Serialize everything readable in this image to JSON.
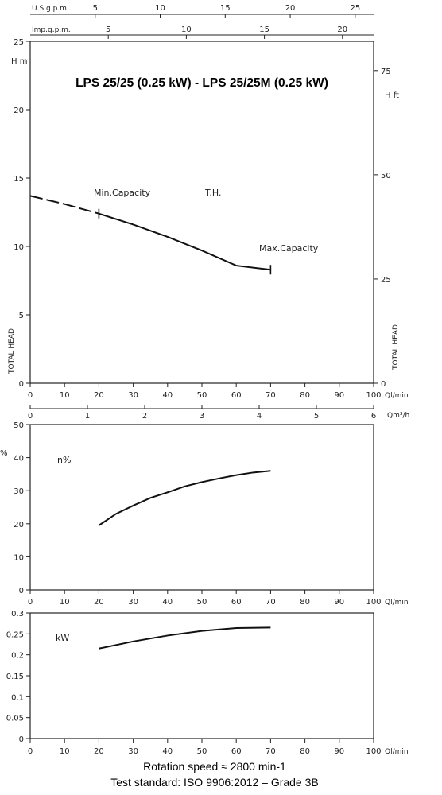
{
  "chart_data": [
    {
      "type": "line",
      "title": "LPS 25/25 (0.25 kW) - LPS 25/25M (0.25 kW)",
      "xlabel": "Ql/min",
      "ylabel": "TOTAL HEAD",
      "y_unit_left": "H m",
      "y_unit_right": "H ft",
      "xlim": [
        0,
        100
      ],
      "ylim": [
        0,
        25
      ],
      "x_ticks": [
        0,
        10,
        20,
        30,
        40,
        50,
        60,
        70,
        80,
        90,
        100
      ],
      "y_ticks": [
        0,
        5,
        10,
        15,
        20,
        25
      ],
      "y2_ticks": [
        0,
        25,
        50,
        75
      ],
      "secondary_x_axes": [
        {
          "label": "U.S.g.p.m.",
          "ticks": [
            5,
            10,
            15,
            20,
            25
          ]
        },
        {
          "label": "Imp.g.p.m.",
          "ticks": [
            5,
            10,
            15,
            20
          ]
        },
        {
          "label": "Qm³/h",
          "ticks": [
            0,
            1,
            2,
            3,
            4,
            5,
            6
          ]
        }
      ],
      "series": [
        {
          "name": "T.H.",
          "x": [
            0,
            10,
            20,
            30,
            40,
            50,
            60,
            70
          ],
          "y": [
            13.7,
            13.1,
            12.4,
            11.6,
            10.7,
            9.7,
            8.6,
            8.3
          ],
          "dashed_until_x": 20
        }
      ],
      "annotations": [
        {
          "text": "Min.Capacity",
          "x": 20,
          "y": 12.4
        },
        {
          "text": "Max.Capacity",
          "x": 70,
          "y": 8.3
        }
      ],
      "grid": false
    },
    {
      "type": "line",
      "title": "",
      "xlabel": "Ql/min",
      "ylabel": "%",
      "xlim": [
        0,
        100
      ],
      "ylim": [
        0,
        50
      ],
      "x_ticks": [
        0,
        10,
        20,
        30,
        40,
        50,
        60,
        70,
        80,
        90,
        100
      ],
      "y_ticks": [
        0,
        10,
        20,
        30,
        40,
        50
      ],
      "series": [
        {
          "name": "n%",
          "x": [
            20,
            25,
            30,
            35,
            40,
            45,
            50,
            55,
            60,
            65,
            70
          ],
          "y": [
            19.5,
            23,
            25.5,
            27.8,
            29.5,
            31.3,
            32.6,
            33.7,
            34.7,
            35.5,
            36.0
          ]
        }
      ],
      "grid": false
    },
    {
      "type": "line",
      "title": "",
      "xlabel": "Ql/min",
      "ylabel": "",
      "xlim": [
        0,
        100
      ],
      "ylim": [
        0,
        0.3
      ],
      "x_ticks": [
        0,
        10,
        20,
        30,
        40,
        50,
        60,
        70,
        80,
        90,
        100
      ],
      "y_ticks": [
        0,
        0.05,
        0.1,
        0.15,
        0.2,
        0.25,
        0.3
      ],
      "series": [
        {
          "name": "kW",
          "x": [
            20,
            30,
            40,
            50,
            60,
            70
          ],
          "y": [
            0.215,
            0.232,
            0.246,
            0.257,
            0.264,
            0.265
          ]
        }
      ],
      "grid": false
    }
  ],
  "footer": {
    "line1": "Rotation speed ≈ 2800 min-1",
    "line2": "Test standard: ISO 9906:2012 – Grade 3B"
  }
}
